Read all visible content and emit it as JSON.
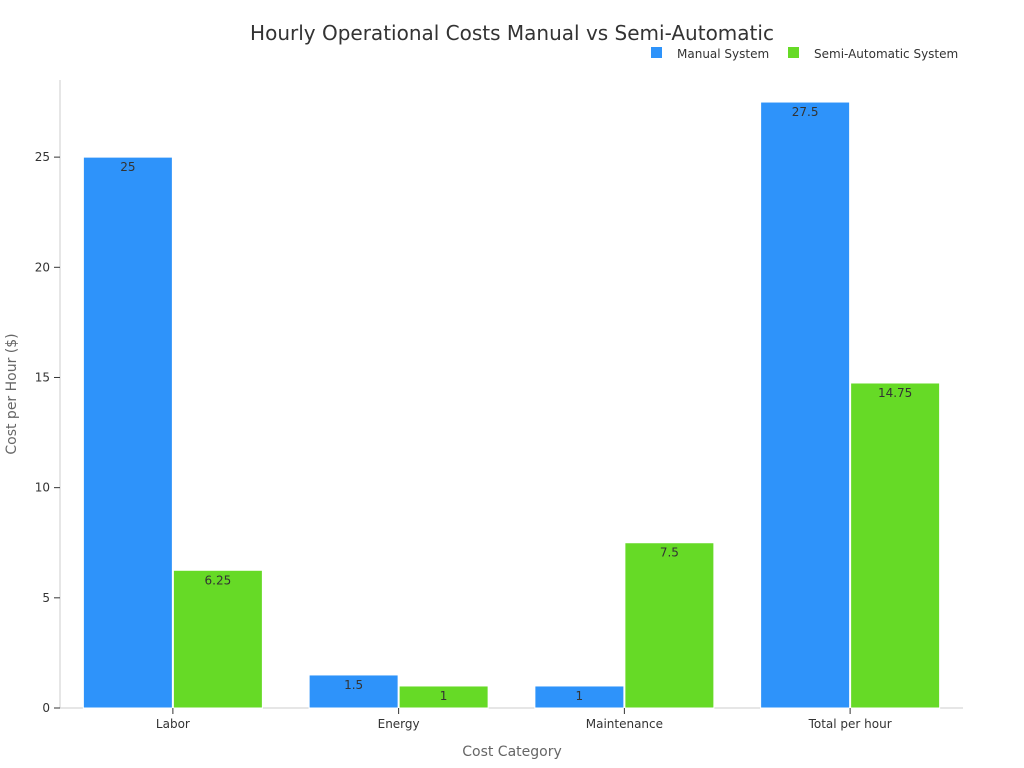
{
  "chart_data": {
    "type": "bar",
    "title": "Hourly Operational Costs Manual vs Semi-Automatic",
    "xlabel": "Cost Category",
    "ylabel": "Cost per Hour ($)",
    "categories": [
      "Labor",
      "Energy",
      "Maintenance",
      "Total per hour"
    ],
    "series": [
      {
        "name": "Manual System",
        "values": [
          25,
          1.5,
          1,
          27.5
        ],
        "labels": [
          "25",
          "1.5",
          "1",
          "27.5"
        ],
        "color": "#2e93fa"
      },
      {
        "name": "Semi-Automatic System",
        "values": [
          6.25,
          1,
          7.5,
          14.75
        ],
        "labels": [
          "6.25",
          "1",
          "7.5",
          "14.75"
        ],
        "color": "#66da26"
      }
    ],
    "ylim": [
      0,
      28.5
    ],
    "yticks": [
      0,
      5,
      10,
      15,
      20,
      25
    ],
    "ytick_labels": [
      "0",
      "5",
      "10",
      "15",
      "20",
      "25"
    ],
    "grid": false,
    "legend_position": "top-right"
  }
}
